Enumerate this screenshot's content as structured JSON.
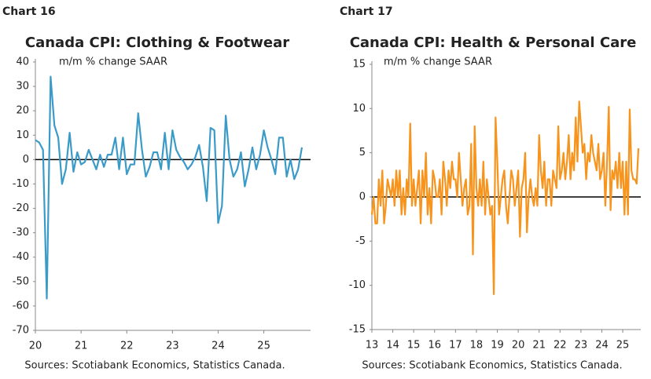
{
  "chart_data": [
    {
      "type": "line",
      "label": "Chart 16",
      "title": "Canada CPI: Clothing & Footwear",
      "subtitle": "m/m % change SAAR",
      "source": "Sources: Scotiabank Economics, Statistics Canada.",
      "color": "#3a9bc9",
      "ylim": [
        -70,
        40
      ],
      "yticks": [
        -70,
        -60,
        -50,
        -40,
        -30,
        -20,
        -10,
        0,
        10,
        20,
        30,
        40
      ],
      "categories": [
        "20",
        null,
        null,
        null,
        null,
        null,
        null,
        null,
        null,
        null,
        null,
        null,
        "21",
        null,
        null,
        null,
        null,
        null,
        null,
        null,
        null,
        null,
        null,
        null,
        "22",
        null,
        null,
        null,
        null,
        null,
        null,
        null,
        null,
        null,
        null,
        null,
        "23",
        null,
        null,
        null,
        null,
        null,
        null,
        null,
        null,
        null,
        null,
        null,
        "24",
        null,
        null,
        null,
        null,
        null,
        null,
        null,
        null,
        null,
        null,
        null,
        "25",
        null,
        null,
        null,
        null,
        null,
        null,
        null,
        null,
        null,
        null
      ],
      "values": [
        8,
        7,
        4,
        -57,
        34,
        14,
        9,
        -10,
        -4,
        11,
        -5,
        3,
        -2,
        -1,
        4,
        0,
        -4,
        2,
        -3,
        2,
        2,
        9,
        -4,
        9,
        -6,
        -2,
        -2,
        19,
        4,
        -7,
        -3,
        3,
        3,
        -4,
        11,
        -4,
        12,
        4,
        1,
        -1,
        -4,
        -2,
        1,
        6,
        -3,
        -17,
        13,
        12,
        -26,
        -19,
        18,
        0,
        -7,
        -4,
        3,
        -11,
        -4,
        5,
        -4,
        2,
        12,
        5,
        0,
        -6,
        9,
        9,
        -7,
        0,
        -8,
        -4,
        5
      ]
    },
    {
      "type": "line",
      "label": "Chart 17",
      "title": "Canada CPI: Health & Personal Care",
      "subtitle": "m/m % change SAAR",
      "source": "Sources: Scotiabank Economics, Statistics Canada.",
      "color": "#f7941d",
      "ylim": [
        -15,
        15
      ],
      "yticks": [
        -15,
        -10,
        -5,
        0,
        5,
        10,
        15
      ],
      "categories": [
        "13",
        null,
        null,
        null,
        null,
        null,
        null,
        null,
        null,
        null,
        null,
        null,
        "14",
        null,
        null,
        null,
        null,
        null,
        null,
        null,
        null,
        null,
        null,
        null,
        "15",
        null,
        null,
        null,
        null,
        null,
        null,
        null,
        null,
        null,
        null,
        null,
        "16",
        null,
        null,
        null,
        null,
        null,
        null,
        null,
        null,
        null,
        null,
        null,
        "17",
        null,
        null,
        null,
        null,
        null,
        null,
        null,
        null,
        null,
        null,
        null,
        "18",
        null,
        null,
        null,
        null,
        null,
        null,
        null,
        null,
        null,
        null,
        null,
        "19",
        null,
        null,
        null,
        null,
        null,
        null,
        null,
        null,
        null,
        null,
        null,
        "20",
        null,
        null,
        null,
        null,
        null,
        null,
        null,
        null,
        null,
        null,
        null,
        "21",
        null,
        null,
        null,
        null,
        null,
        null,
        null,
        null,
        null,
        null,
        null,
        "22",
        null,
        null,
        null,
        null,
        null,
        null,
        null,
        null,
        null,
        null,
        null,
        "23",
        null,
        null,
        null,
        null,
        null,
        null,
        null,
        null,
        null,
        null,
        null,
        "24",
        null,
        null,
        null,
        null,
        null,
        null,
        null,
        null,
        null,
        null,
        null,
        "25",
        null,
        null,
        null,
        null,
        null,
        null,
        null,
        null,
        null
      ],
      "values": [
        -2,
        0,
        -3,
        -3,
        2,
        -1,
        3,
        -3,
        -1,
        2,
        1,
        0,
        2,
        -1,
        3,
        0,
        3,
        -2,
        1,
        -2,
        2,
        0,
        8.3,
        -1,
        2,
        -1,
        1,
        3,
        -3,
        3,
        0,
        5,
        -2,
        1,
        -3,
        3,
        2,
        0,
        0,
        2,
        -2,
        4,
        2,
        -1,
        3,
        1,
        4,
        2,
        2,
        0,
        5,
        2,
        -1,
        1,
        2,
        -2,
        -1,
        6,
        -6.5,
        8,
        1,
        -1,
        2,
        -1,
        4,
        -2,
        2,
        0,
        -2,
        -1,
        -11,
        9,
        4,
        -2,
        0,
        2,
        3,
        -1,
        -3,
        0,
        3,
        2,
        -1,
        1,
        3,
        -4.5,
        1,
        2,
        5,
        -4,
        0,
        2,
        0,
        -1,
        1,
        -1,
        7,
        3,
        1,
        4,
        -1,
        2,
        2,
        -1,
        3,
        2,
        1,
        8,
        2,
        3,
        5,
        2,
        4,
        7,
        2,
        5,
        3,
        9,
        4,
        10.8,
        8,
        5,
        6,
        2,
        5,
        4,
        7,
        5,
        4,
        3,
        6,
        2,
        3,
        5,
        -1,
        4,
        10.2,
        -1.5,
        3,
        2,
        4,
        1,
        5,
        1,
        4,
        -2,
        4,
        -2,
        9.9,
        3,
        2,
        2,
        1.5,
        5.5
      ]
    }
  ]
}
